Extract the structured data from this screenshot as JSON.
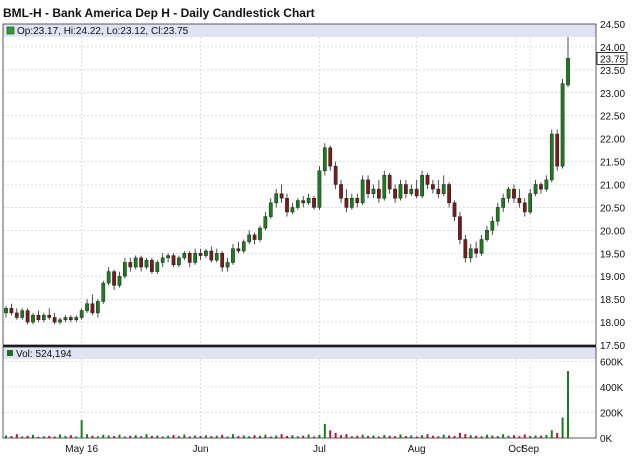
{
  "chart_data": {
    "type": "candlestick",
    "title": "BML-H - Bank America Dep H - Daily Candlestick Chart",
    "ohlc_readout": "Op:23.17, Hi:24.22, Lo:23.12, Cl:23.75",
    "last_price_label": "23.75",
    "y_ticks": [
      "24.50",
      "24.00",
      "23.50",
      "23.00",
      "22.50",
      "22.00",
      "21.50",
      "21.00",
      "20.50",
      "20.00",
      "19.50",
      "19.00",
      "18.50",
      "18.00",
      "17.50"
    ],
    "ylim": [
      17.5,
      24.5
    ],
    "x_ticks": [
      "May 16",
      "Jun",
      "Jul",
      "Aug",
      "Sep",
      "Oct"
    ],
    "grid": true,
    "up_color": "#1a7f1a",
    "down_color": "#7a1a1a",
    "ohlc": [
      [
        18.2,
        18.35,
        18.1,
        18.3
      ],
      [
        18.3,
        18.4,
        18.15,
        18.2
      ],
      [
        18.2,
        18.3,
        18.05,
        18.1
      ],
      [
        18.1,
        18.3,
        18.05,
        18.25
      ],
      [
        18.25,
        18.3,
        17.95,
        18.0
      ],
      [
        18.0,
        18.2,
        17.95,
        18.15
      ],
      [
        18.15,
        18.25,
        18.0,
        18.05
      ],
      [
        18.05,
        18.2,
        18.0,
        18.15
      ],
      [
        18.15,
        18.3,
        18.05,
        18.1
      ],
      [
        18.1,
        18.2,
        17.95,
        18.0
      ],
      [
        18.0,
        18.1,
        17.95,
        18.05
      ],
      [
        18.05,
        18.15,
        18.0,
        18.1
      ],
      [
        18.1,
        18.15,
        18.0,
        18.05
      ],
      [
        18.05,
        18.15,
        18.0,
        18.1
      ],
      [
        18.1,
        18.3,
        18.05,
        18.25
      ],
      [
        18.25,
        18.5,
        18.2,
        18.4
      ],
      [
        18.4,
        18.6,
        18.15,
        18.2
      ],
      [
        18.2,
        18.5,
        18.1,
        18.45
      ],
      [
        18.45,
        18.9,
        18.4,
        18.85
      ],
      [
        18.85,
        19.2,
        18.8,
        19.1
      ],
      [
        19.1,
        19.15,
        18.7,
        18.8
      ],
      [
        18.8,
        19.1,
        18.75,
        19.0
      ],
      [
        19.0,
        19.4,
        18.95,
        19.3
      ],
      [
        19.3,
        19.4,
        19.1,
        19.2
      ],
      [
        19.2,
        19.45,
        19.15,
        19.4
      ],
      [
        19.4,
        19.45,
        19.1,
        19.2
      ],
      [
        19.2,
        19.4,
        19.15,
        19.35
      ],
      [
        19.35,
        19.4,
        19.05,
        19.1
      ],
      [
        19.1,
        19.35,
        19.05,
        19.3
      ],
      [
        19.3,
        19.5,
        19.2,
        19.4
      ],
      [
        19.4,
        19.5,
        19.3,
        19.45
      ],
      [
        19.45,
        19.5,
        19.2,
        19.25
      ],
      [
        19.25,
        19.45,
        19.2,
        19.4
      ],
      [
        19.4,
        19.55,
        19.35,
        19.5
      ],
      [
        19.5,
        19.55,
        19.2,
        19.3
      ],
      [
        19.3,
        19.6,
        19.25,
        19.5
      ],
      [
        19.5,
        19.6,
        19.35,
        19.45
      ],
      [
        19.45,
        19.6,
        19.4,
        19.55
      ],
      [
        19.55,
        19.65,
        19.3,
        19.35
      ],
      [
        19.35,
        19.6,
        19.3,
        19.5
      ],
      [
        19.5,
        19.55,
        19.1,
        19.2
      ],
      [
        19.2,
        19.4,
        19.1,
        19.3
      ],
      [
        19.3,
        19.7,
        19.25,
        19.6
      ],
      [
        19.6,
        19.75,
        19.5,
        19.55
      ],
      [
        19.55,
        19.8,
        19.5,
        19.75
      ],
      [
        19.75,
        20.0,
        19.7,
        19.9
      ],
      [
        19.9,
        19.95,
        19.7,
        19.8
      ],
      [
        19.8,
        20.1,
        19.75,
        20.05
      ],
      [
        20.05,
        20.4,
        20.0,
        20.3
      ],
      [
        20.3,
        20.7,
        20.25,
        20.6
      ],
      [
        20.6,
        20.9,
        20.5,
        20.8
      ],
      [
        20.8,
        21.0,
        20.6,
        20.7
      ],
      [
        20.7,
        20.8,
        20.3,
        20.4
      ],
      [
        20.4,
        20.6,
        20.35,
        20.5
      ],
      [
        20.5,
        20.7,
        20.45,
        20.65
      ],
      [
        20.65,
        20.75,
        20.5,
        20.6
      ],
      [
        20.6,
        20.8,
        20.55,
        20.7
      ],
      [
        20.7,
        20.75,
        20.45,
        20.5
      ],
      [
        20.5,
        21.4,
        20.45,
        21.3
      ],
      [
        21.3,
        21.9,
        21.2,
        21.8
      ],
      [
        21.8,
        21.85,
        21.3,
        21.4
      ],
      [
        21.4,
        21.5,
        20.9,
        21.0
      ],
      [
        21.0,
        21.1,
        20.6,
        20.7
      ],
      [
        20.7,
        20.9,
        20.4,
        20.5
      ],
      [
        20.5,
        20.8,
        20.45,
        20.7
      ],
      [
        20.7,
        20.8,
        20.5,
        20.6
      ],
      [
        20.6,
        21.2,
        20.55,
        21.1
      ],
      [
        21.1,
        21.2,
        20.7,
        20.8
      ],
      [
        20.8,
        21.0,
        20.7,
        20.9
      ],
      [
        20.9,
        21.1,
        20.6,
        20.7
      ],
      [
        20.7,
        21.3,
        20.65,
        21.2
      ],
      [
        21.2,
        21.25,
        20.8,
        20.9
      ],
      [
        20.9,
        21.0,
        20.6,
        20.7
      ],
      [
        20.7,
        21.1,
        20.65,
        21.0
      ],
      [
        21.0,
        21.1,
        20.7,
        20.8
      ],
      [
        20.8,
        21.0,
        20.75,
        20.9
      ],
      [
        20.9,
        21.1,
        20.7,
        20.75
      ],
      [
        20.75,
        21.3,
        20.7,
        21.2
      ],
      [
        21.2,
        21.25,
        20.9,
        21.0
      ],
      [
        21.0,
        21.1,
        20.8,
        20.9
      ],
      [
        20.9,
        21.1,
        20.7,
        20.8
      ],
      [
        20.8,
        21.2,
        20.75,
        21.0
      ],
      [
        21.0,
        21.05,
        20.5,
        20.6
      ],
      [
        20.6,
        20.65,
        20.2,
        20.3
      ],
      [
        20.3,
        20.4,
        19.7,
        19.8
      ],
      [
        19.8,
        19.9,
        19.3,
        19.4
      ],
      [
        19.4,
        19.7,
        19.3,
        19.6
      ],
      [
        19.6,
        19.75,
        19.4,
        19.5
      ],
      [
        19.5,
        19.9,
        19.45,
        19.8
      ],
      [
        19.8,
        20.1,
        19.75,
        20.0
      ],
      [
        20.0,
        20.3,
        19.9,
        20.2
      ],
      [
        20.2,
        20.6,
        20.1,
        20.5
      ],
      [
        20.5,
        20.8,
        20.4,
        20.7
      ],
      [
        20.7,
        20.95,
        20.6,
        20.9
      ],
      [
        20.9,
        21.0,
        20.6,
        20.7
      ],
      [
        20.7,
        20.9,
        20.5,
        20.6
      ],
      [
        20.6,
        20.7,
        20.3,
        20.4
      ],
      [
        20.4,
        20.9,
        20.35,
        20.8
      ],
      [
        20.8,
        21.1,
        20.75,
        21.0
      ],
      [
        21.0,
        21.05,
        20.8,
        20.9
      ],
      [
        20.9,
        21.2,
        20.85,
        21.1
      ],
      [
        21.1,
        22.2,
        21.05,
        22.1
      ],
      [
        22.1,
        22.2,
        21.3,
        21.4
      ],
      [
        21.4,
        23.3,
        21.35,
        23.2
      ],
      [
        23.17,
        24.22,
        23.12,
        23.75
      ]
    ],
    "volume_label": "Vol: 524,194",
    "volume_ticks": [
      "600K",
      "400K",
      "200K",
      "0K"
    ],
    "volume_ylim": [
      0,
      650000
    ],
    "volume": [
      20000,
      15000,
      30000,
      12000,
      18000,
      25000,
      10000,
      14000,
      16000,
      12000,
      28000,
      15000,
      22000,
      12000,
      140000,
      30000,
      18000,
      14000,
      25000,
      20000,
      15000,
      26000,
      12000,
      18000,
      22000,
      14000,
      30000,
      16000,
      20000,
      12000,
      18000,
      24000,
      15000,
      28000,
      12000,
      20000,
      16000,
      22000,
      14000,
      18000,
      25000,
      12000,
      30000,
      16000,
      20000,
      14000,
      22000,
      18000,
      26000,
      12000,
      20000,
      30000,
      16000,
      22000,
      14000,
      18000,
      28000,
      12000,
      25000,
      110000,
      60000,
      40000,
      22000,
      30000,
      14000,
      18000,
      26000,
      16000,
      20000,
      12000,
      24000,
      18000,
      14000,
      28000,
      16000,
      20000,
      12000,
      22000,
      30000,
      18000,
      14000,
      26000,
      20000,
      16000,
      40000,
      30000,
      22000,
      18000,
      14000,
      26000,
      20000,
      16000,
      30000,
      18000,
      22000,
      14000,
      28000,
      16000,
      20000,
      18000,
      24000,
      60000,
      40000,
      160000,
      524194
    ]
  }
}
